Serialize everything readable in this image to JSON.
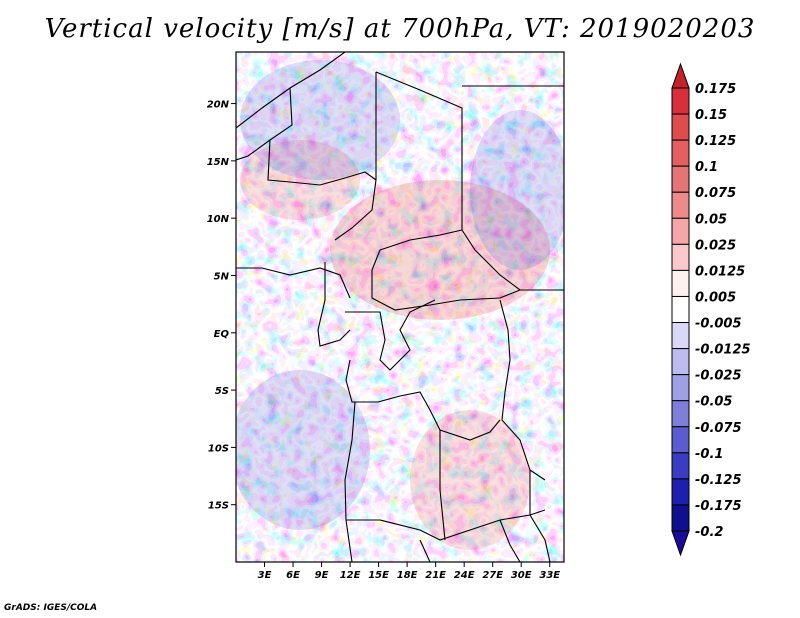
{
  "chart_data": {
    "type": "heatmap",
    "title": "Vertical velocity [m/s] at 700hPa, VT: 2019020203",
    "variable": "Vertical velocity",
    "units": "m/s",
    "level": "700hPa",
    "valid_time": "2019020203",
    "x_axis": {
      "labels": [
        "3E",
        "6E",
        "9E",
        "12E",
        "15E",
        "18E",
        "21E",
        "24E",
        "27E",
        "30E",
        "33E"
      ],
      "values": [
        3,
        6,
        9,
        12,
        15,
        18,
        21,
        24,
        27,
        30,
        33
      ],
      "range": [
        0,
        34.5
      ]
    },
    "y_axis": {
      "labels": [
        "20N",
        "15N",
        "10N",
        "5N",
        "EQ",
        "5S",
        "10S",
        "15S"
      ],
      "values": [
        20,
        15,
        10,
        5,
        0,
        -5,
        -10,
        -15
      ],
      "range": [
        -20,
        24.5
      ]
    },
    "colorbar": {
      "levels": [
        "0.175",
        "0.15",
        "0.125",
        "0.1",
        "0.075",
        "0.05",
        "0.025",
        "0.0125",
        "0.005",
        "-0.005",
        "-0.0125",
        "-0.025",
        "-0.05",
        "-0.075",
        "-0.1",
        "-0.125",
        "-0.175",
        "-0.2"
      ],
      "colors": [
        "#c4212a",
        "#d7303a",
        "#e04b4b",
        "#e45f5f",
        "#e57575",
        "#ef8a8a",
        "#f6a6a6",
        "#fbc9c9",
        "#fff0f0",
        "#ffffff",
        "#d9d9f7",
        "#bcbcef",
        "#9f9fe6",
        "#7f7fdb",
        "#5c5cd0",
        "#3b3bc4",
        "#1e1eb0",
        "#0f0f8f",
        "#1a0a99"
      ],
      "orientation": "vertical"
    },
    "field_description_colors": {
      "positive": "#e04b4b",
      "negative": "#5c5cd0"
    }
  },
  "footer": {
    "credit": "GrADS: IGES/COLA"
  }
}
